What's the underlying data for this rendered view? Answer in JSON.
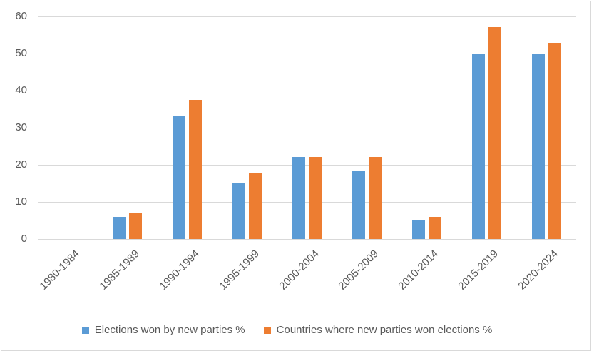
{
  "chart_data": {
    "type": "bar",
    "title": "",
    "xlabel": "",
    "ylabel": "",
    "categories": [
      "1980-1984",
      "1985-1989",
      "1990-1994",
      "1995-1999",
      "2000-2004",
      "2005-2009",
      "2010-2014",
      "2015-2019",
      "2020-2024"
    ],
    "series": [
      {
        "name": "Elections won by new parties %",
        "color": "#5B9BD5",
        "values": [
          0,
          6,
          33.3,
          15,
          22.2,
          18.2,
          5,
          50,
          50
        ]
      },
      {
        "name": "Countries where new parties won elections %",
        "color": "#ED7D31",
        "values": [
          0,
          7,
          37.5,
          17.6,
          22.2,
          22.2,
          6,
          57.1,
          52.9
        ]
      }
    ],
    "ylim": [
      0,
      60
    ],
    "yticks": [
      0,
      10,
      20,
      30,
      40,
      50,
      60
    ],
    "grid": true,
    "legend_position": "bottom",
    "colors": {
      "axis_text": "#595959",
      "gridline": "#D9D9D9",
      "chart_border": "#D9D9D9",
      "background": "#FFFFFF"
    }
  }
}
